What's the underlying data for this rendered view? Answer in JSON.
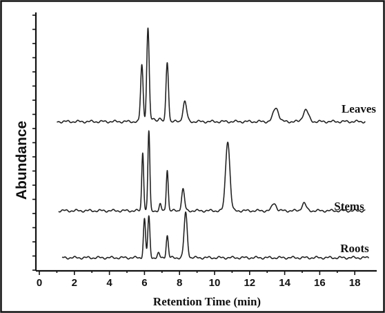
{
  "chart_data": {
    "type": "line",
    "title": "",
    "xlabel": "Retention Time (min)",
    "ylabel": "Abundance",
    "xlim": [
      0,
      19
    ],
    "x_ticks": [
      "0",
      "2",
      "4",
      "6",
      "8",
      "10",
      "12",
      "14",
      "16",
      "18"
    ],
    "grid": false,
    "legend": "none",
    "series": [
      {
        "name": "Leaves",
        "x_range": [
          1.0,
          18.6
        ],
        "baseline": 0.0,
        "peaks": [
          {
            "rt": 5.85,
            "height": 0.82
          },
          {
            "rt": 6.2,
            "height": 1.35
          },
          {
            "rt": 6.55,
            "height": 0.05
          },
          {
            "rt": 6.85,
            "height": 0.06
          },
          {
            "rt": 7.3,
            "height": 0.86
          },
          {
            "rt": 8.3,
            "height": 0.29
          },
          {
            "rt": 13.5,
            "height": 0.2
          },
          {
            "rt": 15.2,
            "height": 0.17
          }
        ]
      },
      {
        "name": "Stems",
        "x_range": [
          1.1,
          18.6
        ],
        "baseline": 0.0,
        "peaks": [
          {
            "rt": 5.9,
            "height": 0.85
          },
          {
            "rt": 6.25,
            "height": 1.15
          },
          {
            "rt": 6.9,
            "height": 0.09
          },
          {
            "rt": 7.3,
            "height": 0.6
          },
          {
            "rt": 8.2,
            "height": 0.31
          },
          {
            "rt": 10.75,
            "height": 1.01
          },
          {
            "rt": 13.4,
            "height": 0.11
          },
          {
            "rt": 15.1,
            "height": 0.11
          }
        ]
      },
      {
        "name": "Roots",
        "x_range": [
          1.3,
          18.8
        ],
        "baseline": 0.0,
        "peaks": [
          {
            "rt": 6.0,
            "height": 0.56
          },
          {
            "rt": 6.25,
            "height": 0.59
          },
          {
            "rt": 6.8,
            "height": 0.06
          },
          {
            "rt": 7.3,
            "height": 0.32
          },
          {
            "rt": 8.35,
            "height": 0.65
          }
        ]
      }
    ]
  }
}
